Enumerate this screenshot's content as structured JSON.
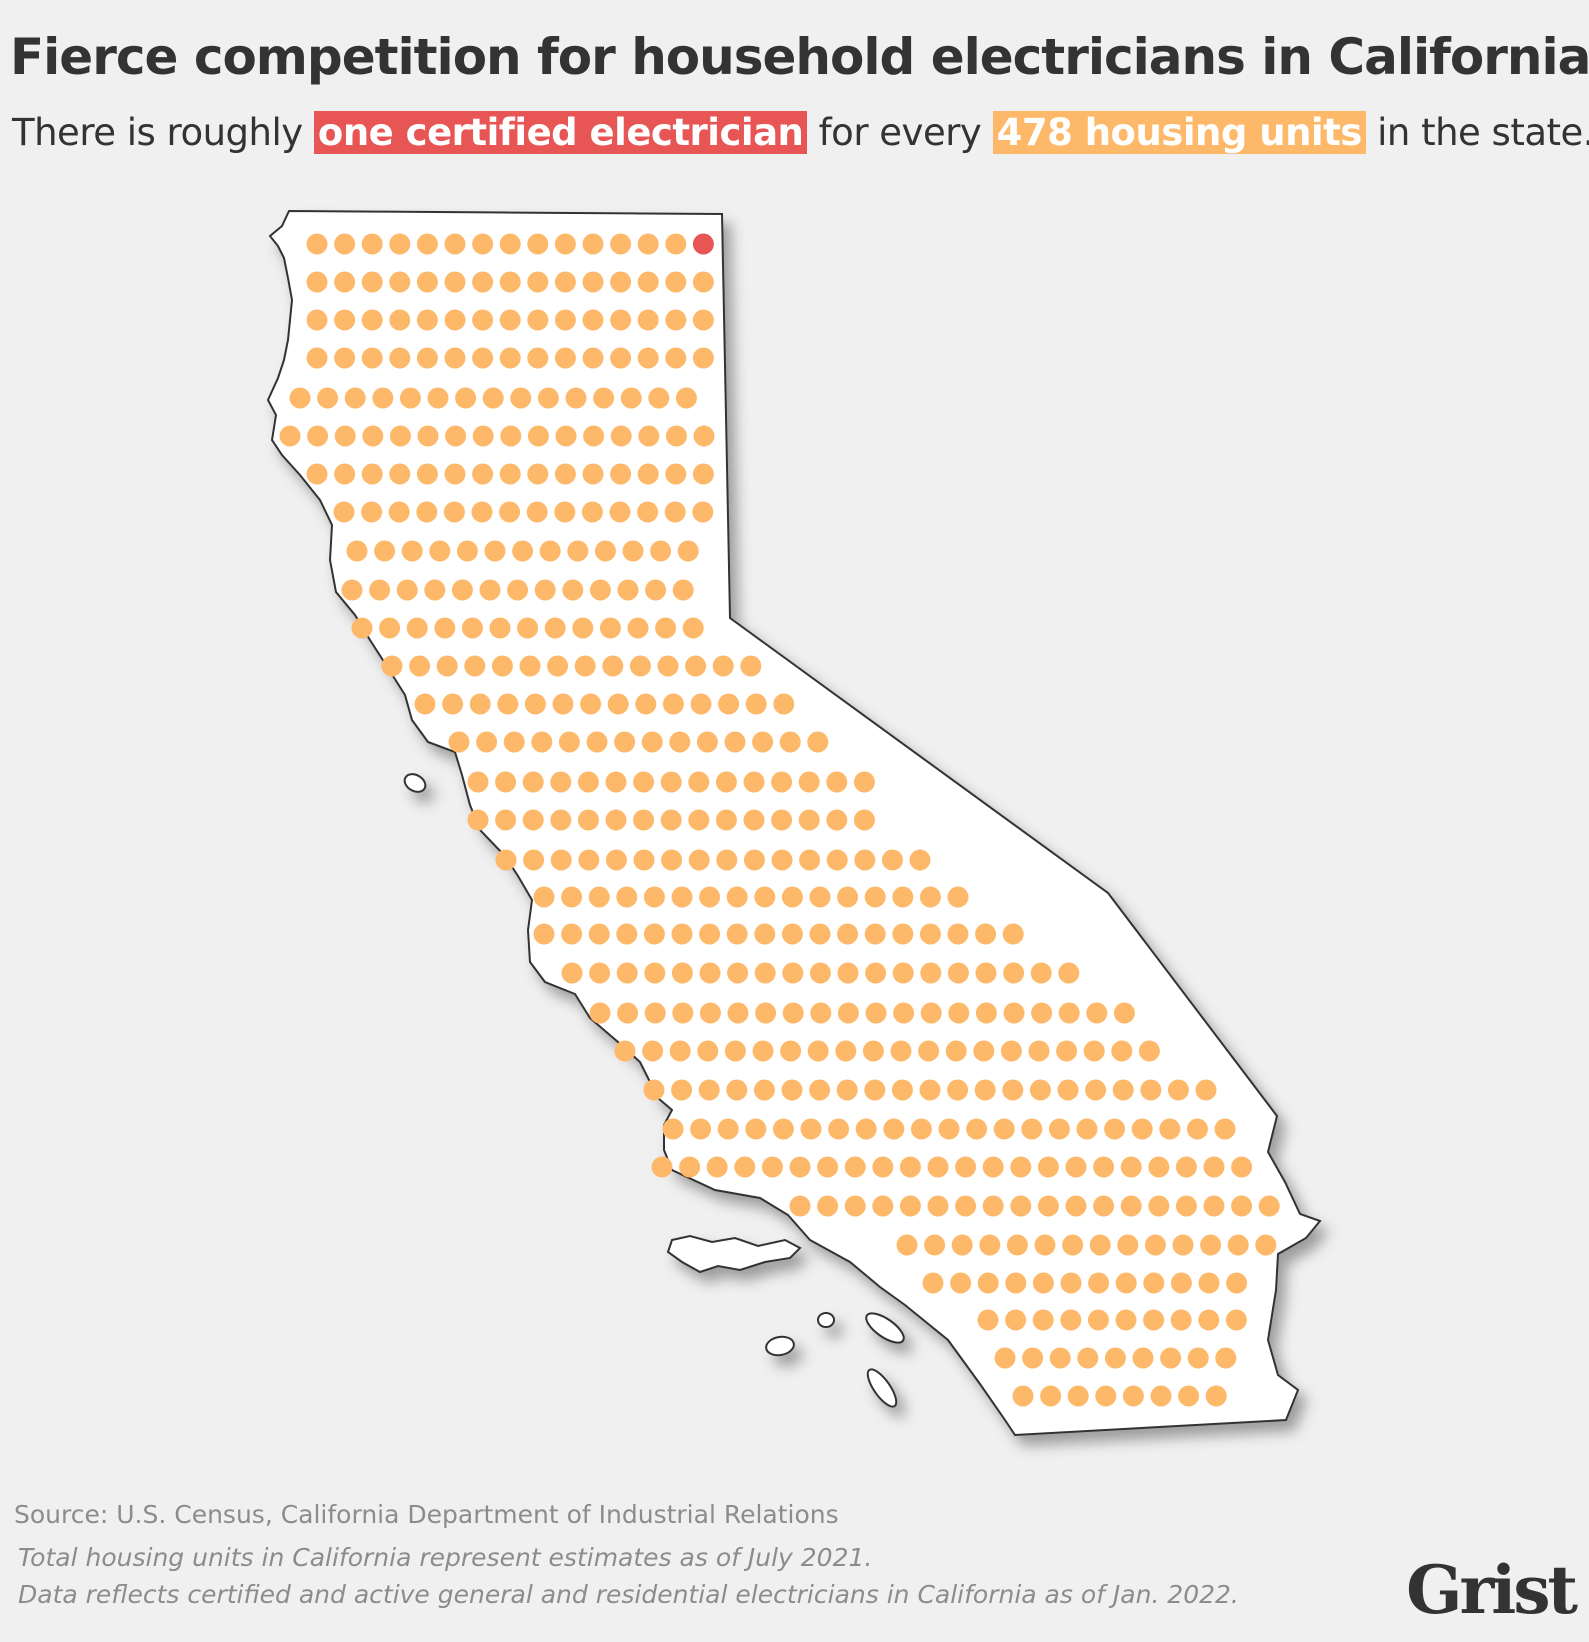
{
  "header": {
    "title": "Fierce competition for household electricians in California",
    "subtitle_before": "There is roughly",
    "subtitle_highlight_1": "one certified electrician",
    "subtitle_middle": "for every",
    "subtitle_highlight_2": "478 housing units",
    "subtitle_after": "in the state."
  },
  "colors": {
    "background": "#f0f0f0",
    "map_fill": "#ffffff",
    "map_outline": "#333333",
    "electrician": "#e85555",
    "housing_unit": "#fdb969",
    "text": "#333333",
    "muted_text": "#8c8c8c"
  },
  "chart_data": {
    "type": "dot-map",
    "region": "California",
    "electricians": 1,
    "housing_units": 478,
    "total_dots": 478,
    "highlighted_dots": 1
  },
  "footer": {
    "source": "Source: U.S. Census, California Department of Industrial Relations",
    "note_1": "Total housing units in California represent estimates as of July 2021.",
    "note_2": "Data reflects certified and active general and residential electricians in California as of Jan. 2022."
  },
  "branding": {
    "logo_text": "Grist"
  }
}
